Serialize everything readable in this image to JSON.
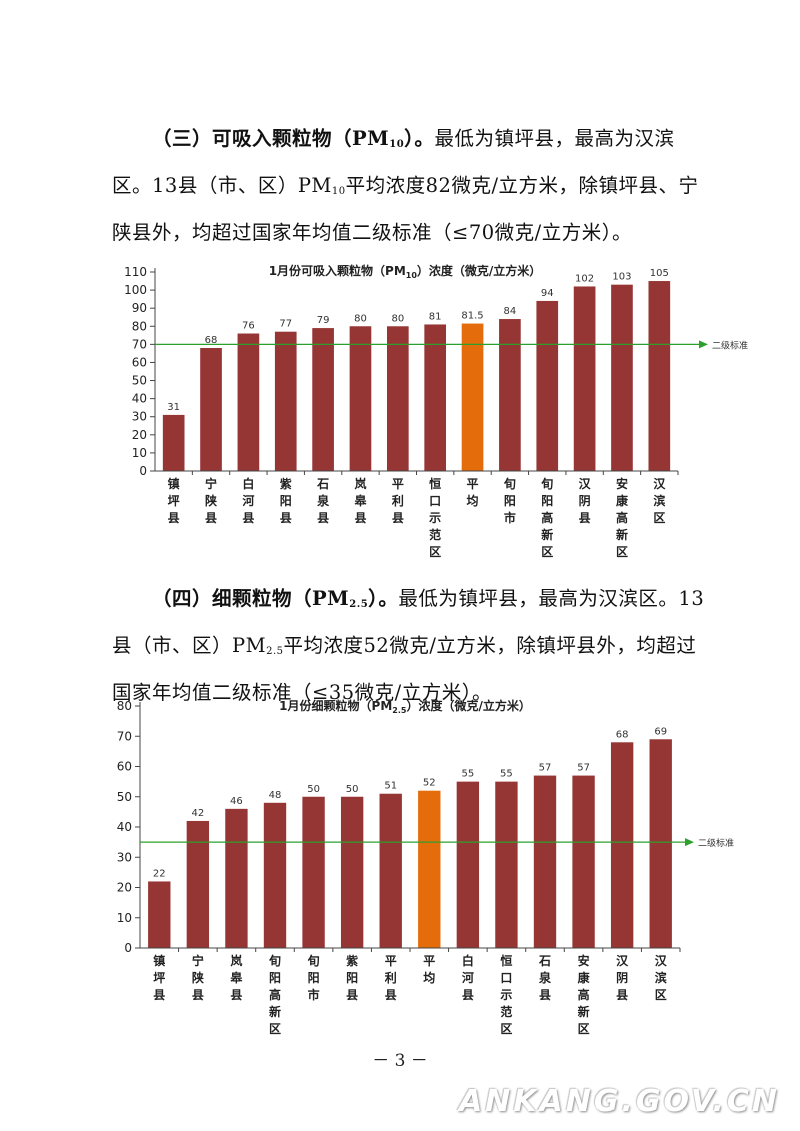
{
  "section3": {
    "heading_pre": "（三）可吸入颗粒物（PM",
    "heading_sub": "10",
    "heading_post": "）。",
    "text1": "最低为镇坪县，最高为汉滨区。13县（市、区）PM",
    "text_sub": "10",
    "text2": "平均浓度82微克/立方米，除镇坪县、宁陕县外，均超过国家年均值二级标准（≤70微克/立方米）。"
  },
  "section4": {
    "heading_pre": "（四）细颗粒物（PM",
    "heading_sub": "2.5",
    "heading_post": "）。",
    "text1": "最低为镇坪县，最高为汉滨区。13县（市、区）PM",
    "text_sub": "2.5",
    "text2": "平均浓度52微克/立方米，除镇坪县外，均超过国家年均值二级标准（≤35微克/立方米）。"
  },
  "colors": {
    "bar": "#963634",
    "highlight_bar": "#e46c0a",
    "standard_line": "#2ca02c"
  },
  "chart_data": [
    {
      "type": "bar",
      "title_pre": "1月份可吸入颗粒物（PM",
      "title_sub": "10",
      "title_post": "）浓度（微克/立方米）",
      "categories": [
        "镇坪县",
        "宁陕县",
        "白河县",
        "紫阳县",
        "石泉县",
        "岚皋县",
        "平利县",
        "恒口示范区",
        "平均",
        "旬阳市",
        "旬阳高新区",
        "汉阴县",
        "安康高新区",
        "汉滨区"
      ],
      "values": [
        31,
        68,
        76,
        77,
        79,
        80,
        80,
        81,
        81.5,
        84,
        94,
        102,
        103,
        105
      ],
      "value_labels": [
        "31",
        "68",
        "76",
        "77",
        "79",
        "80",
        "80",
        "81",
        "81.5",
        "84",
        "94",
        "102",
        "103",
        "105"
      ],
      "highlight_category": "平均",
      "ylim": [
        0,
        110
      ],
      "yticks": [
        0,
        10,
        20,
        30,
        40,
        50,
        60,
        70,
        80,
        90,
        100,
        110
      ],
      "reference_line": {
        "value": 70,
        "label": "二级标准"
      },
      "grid": false,
      "legend": "none"
    },
    {
      "type": "bar",
      "title_pre": "1月份细颗粒物（PM",
      "title_sub": "2.5",
      "title_post": "）浓度（微克/立方米）",
      "categories": [
        "镇坪县",
        "宁陕县",
        "岚皋县",
        "旬阳高新区",
        "旬阳市",
        "紫阳县",
        "平利县",
        "平均",
        "白河县",
        "恒口示范区",
        "石泉县",
        "安康高新区",
        "汉阴县",
        "汉滨区"
      ],
      "values": [
        22,
        42,
        46,
        48,
        50,
        50,
        51,
        52,
        55,
        55,
        57,
        57,
        68,
        69
      ],
      "value_labels": [
        "22",
        "42",
        "46",
        "48",
        "50",
        "50",
        "51",
        "52",
        "55",
        "55",
        "57",
        "57",
        "68",
        "69"
      ],
      "highlight_category": "平均",
      "ylim": [
        0,
        80
      ],
      "yticks": [
        0,
        10,
        20,
        30,
        40,
        50,
        60,
        70,
        80
      ],
      "reference_line": {
        "value": 35,
        "label": "二级标准"
      },
      "grid": false,
      "legend": "none"
    }
  ],
  "footer": {
    "page_number": "－ 3 －",
    "watermark": "ANKANG.GOV.CN"
  }
}
